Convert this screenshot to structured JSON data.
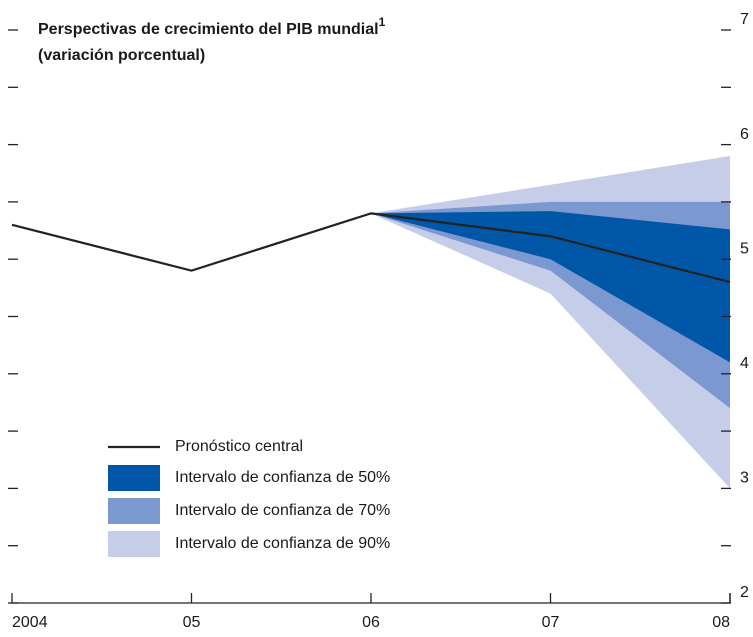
{
  "chart_data": {
    "type": "fan",
    "title": "Perspectivas de crecimiento del PIB mundial",
    "title_note": "1",
    "subtitle": "(variación porcentual)",
    "categories": [
      "2004",
      "05",
      "06",
      "07",
      "08"
    ],
    "ylim": [
      2,
      7
    ],
    "yticks": [
      2,
      3,
      4,
      5,
      6,
      7
    ],
    "minor_yticks": [
      2.5,
      3.5,
      4.5,
      5.5,
      6.5
    ],
    "central": {
      "name": "Pronóstico central",
      "color": "#222222",
      "values": [
        5.3,
        4.9,
        5.4,
        5.2,
        4.8
      ]
    },
    "bands": [
      {
        "name": "Intervalo de confianza de 90%",
        "color": "#c5cde9",
        "upper": [
          null,
          null,
          5.4,
          5.65,
          5.9
        ],
        "lower": [
          null,
          null,
          5.4,
          4.7,
          3.0
        ]
      },
      {
        "name": "Intervalo de confianza de 70%",
        "color": "#7b98d0",
        "upper": [
          null,
          null,
          5.4,
          5.5,
          5.5
        ],
        "lower": [
          null,
          null,
          5.4,
          4.9,
          3.7
        ]
      },
      {
        "name": "Intervalo de confianza de 50%",
        "color": "#0057a8",
        "upper": [
          null,
          null,
          5.4,
          5.42,
          5.26
        ],
        "lower": [
          null,
          null,
          5.4,
          5.0,
          4.1
        ]
      }
    ]
  }
}
